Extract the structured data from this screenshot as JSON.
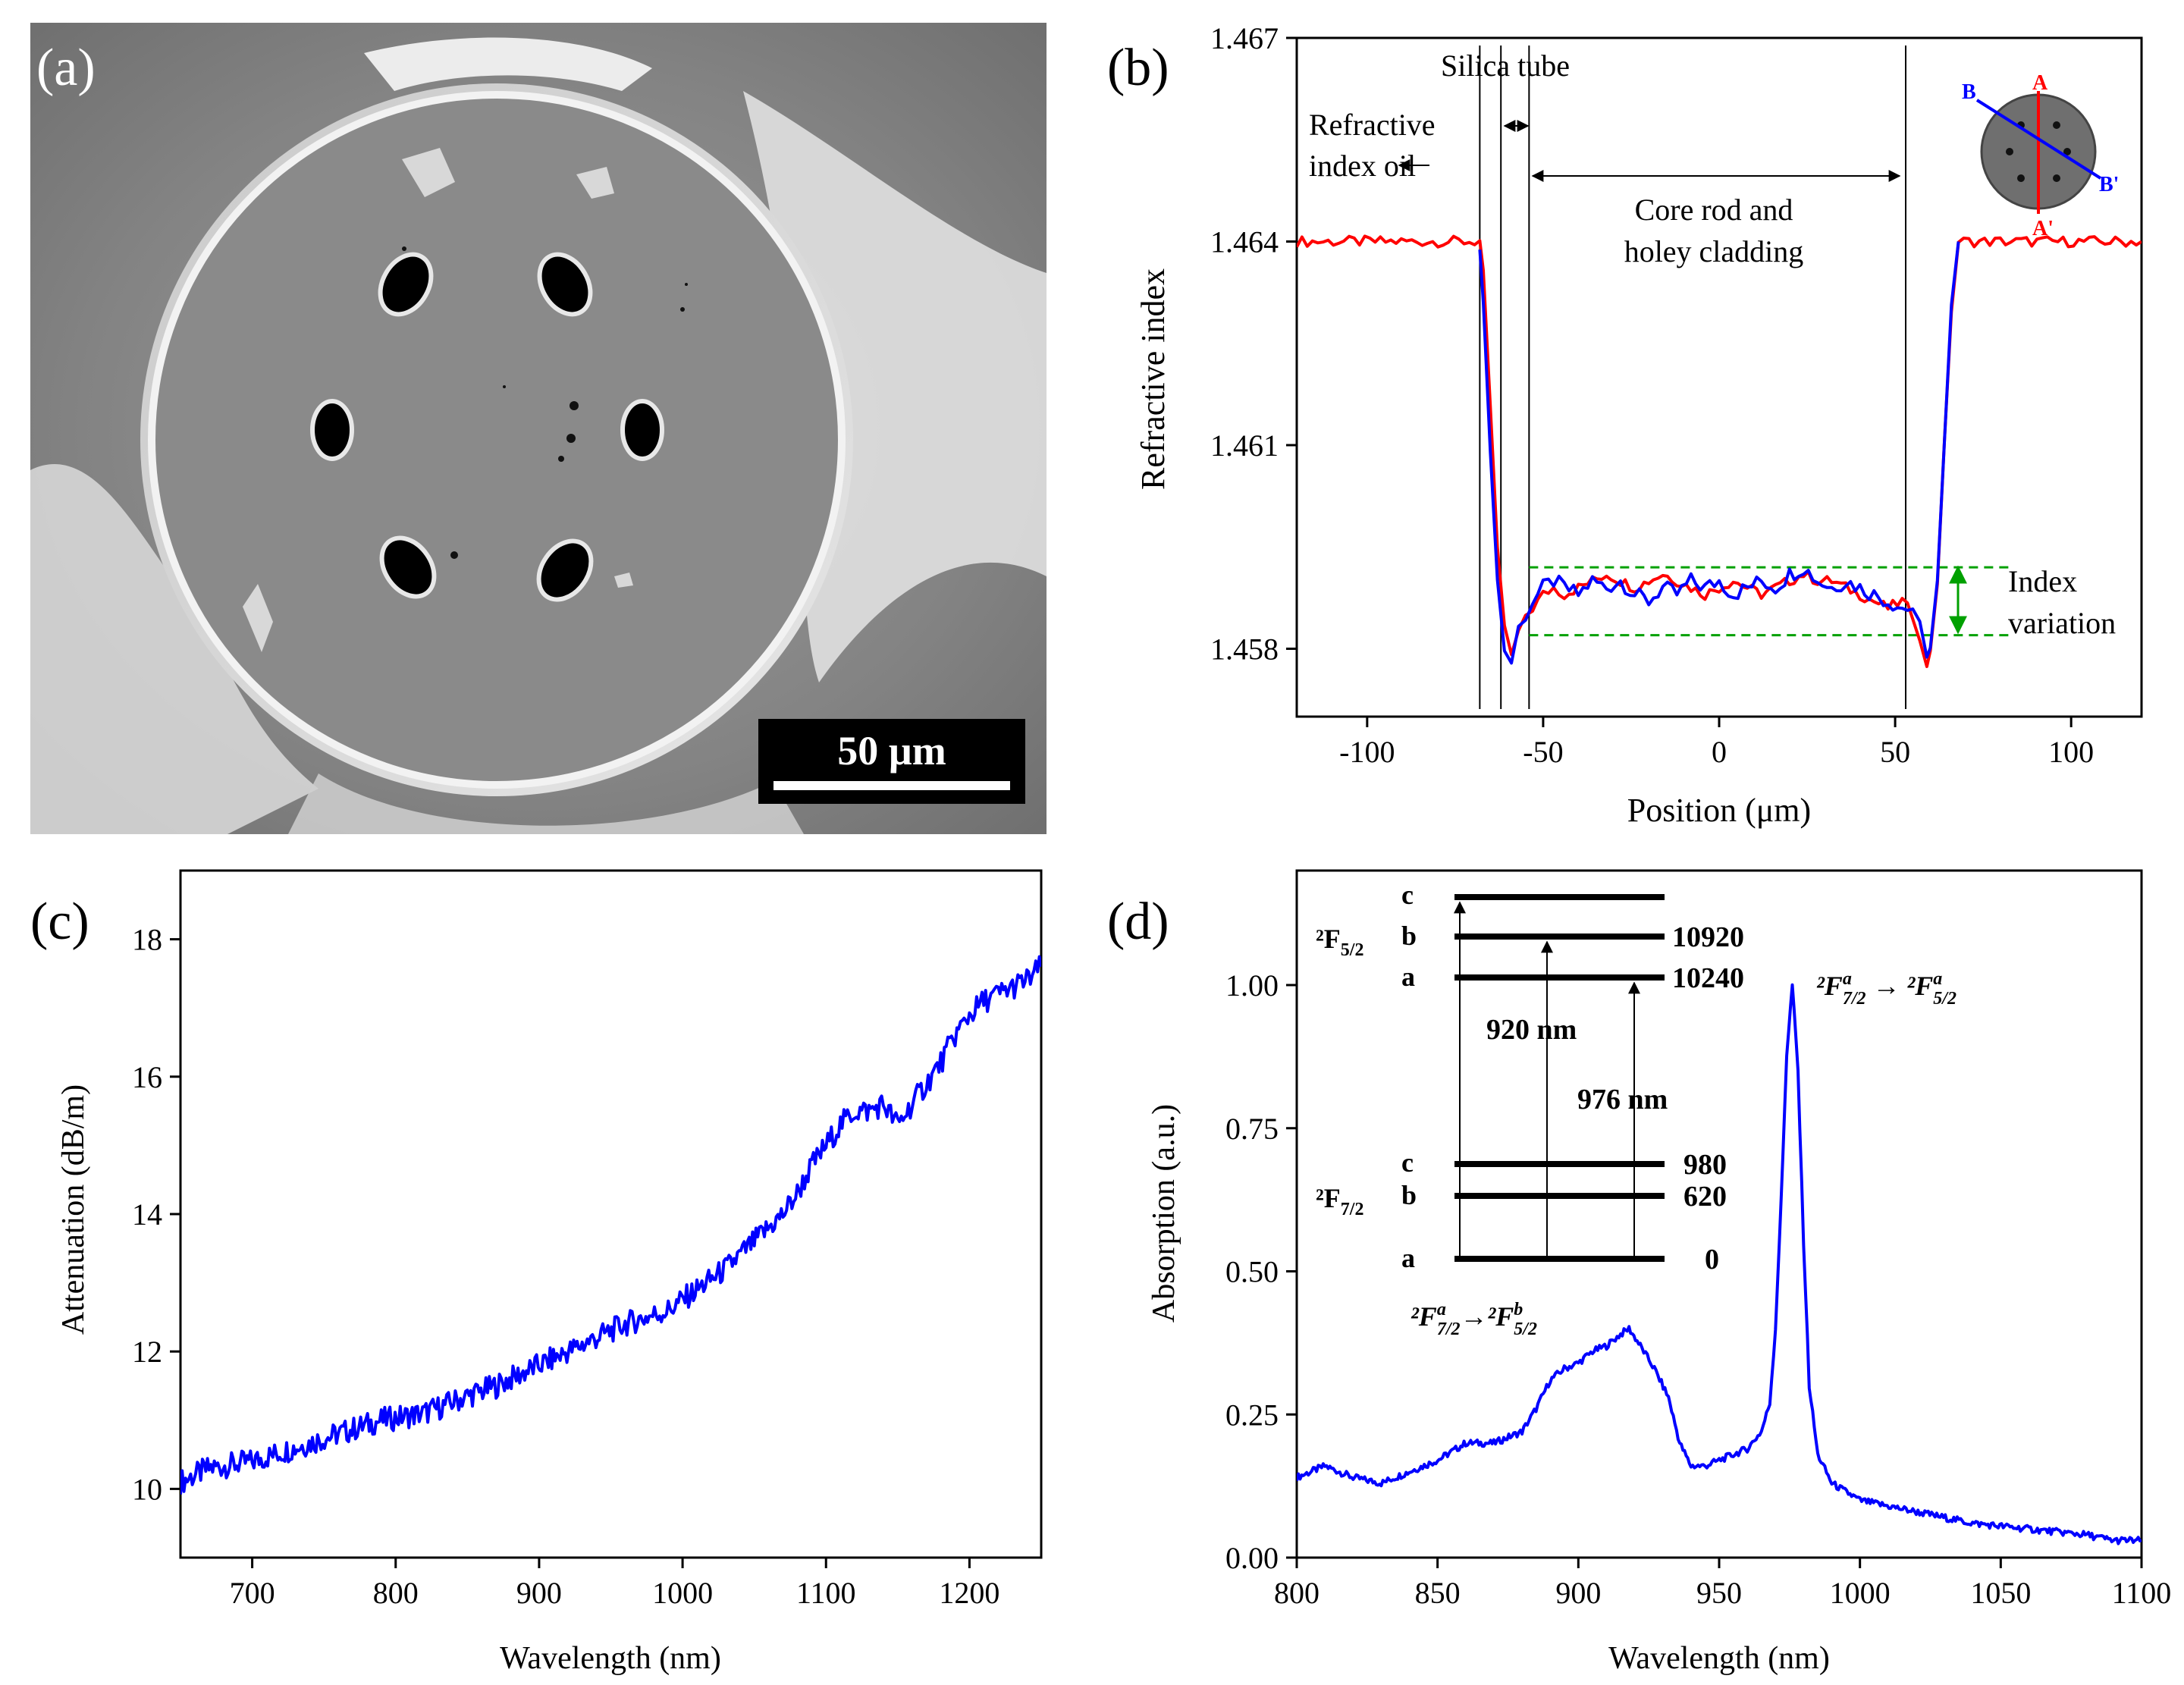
{
  "panels": {
    "a": {
      "label": "(a)",
      "scale_bar": "50 µm"
    },
    "b": {
      "label": "(b)",
      "annotations": {
        "silica_tube": "Silica tube",
        "ri_oil_1": "Refractive",
        "ri_oil_2": "index oil",
        "core_1": "Core rod and",
        "core_2": "holey cladding",
        "index_var_1": "Index",
        "index_var_2": "variation"
      },
      "inset_labels": {
        "A": "A",
        "A_prime": "A'",
        "B": "B",
        "B_prime": "B'"
      }
    },
    "c": {
      "label": "(c)"
    },
    "d": {
      "label": "(d)",
      "energy_levels": {
        "upper_manifold": "²F",
        "upper_sub": "5/2",
        "lower_manifold": "²F",
        "lower_sub": "7/2",
        "upper_levels": [
          {
            "name": "c",
            "energy": ""
          },
          {
            "name": "b",
            "energy": "10920"
          },
          {
            "name": "a",
            "energy": "10240"
          }
        ],
        "lower_levels": [
          {
            "name": "c",
            "energy": "980"
          },
          {
            "name": "b",
            "energy": "620"
          },
          {
            "name": "a",
            "energy": "0"
          }
        ],
        "transition_920": "920 nm",
        "transition_976": "976 nm"
      },
      "peak_label_main": "²F",
      "peak_label_main_sup1": "a",
      "peak_label_main_sub1": "7/2",
      "peak_label_main_sup2": "a",
      "peak_label_main_sub2": "5/2",
      "peak_label_side_sup1": "a",
      "peak_label_side_sub1": "7/2",
      "peak_label_side_sup2": "b",
      "peak_label_side_sub2": "5/2"
    }
  },
  "colors": {
    "red": "#ff0000",
    "blue": "#0000ff",
    "green": "#00a000"
  },
  "chart_data": [
    {
      "id": "b",
      "type": "line",
      "xlabel": "Position (μm)",
      "ylabel": "Refractive index",
      "xlim": [
        -120,
        120
      ],
      "ylim": [
        1.457,
        1.467
      ],
      "xticks": [
        -100,
        -50,
        0,
        50,
        100
      ],
      "yticks": [
        1.458,
        1.461,
        1.464,
        1.467
      ],
      "vlines": [
        -68,
        -62,
        -54,
        53
      ],
      "hlines_dashed": [
        1.4582,
        1.4592
      ],
      "series": [
        {
          "color": "#ff0000",
          "x": [
            -120,
            -68,
            -67,
            -65,
            -63,
            -61,
            -59,
            -57,
            -55,
            -53,
            -50,
            -47,
            -44,
            -40,
            -36,
            -32,
            -28,
            -24,
            -20,
            -16,
            -12,
            -8,
            -4,
            0,
            4,
            8,
            12,
            16,
            20,
            24,
            28,
            32,
            36,
            40,
            44,
            48,
            52,
            55,
            57,
            59,
            60,
            62,
            64,
            66,
            68,
            120
          ],
          "y": [
            1.464,
            1.464,
            1.4635,
            1.4615,
            1.4595,
            1.4583,
            1.4579,
            1.4582,
            1.4585,
            1.4586,
            1.4588,
            1.4589,
            1.4588,
            1.4589,
            1.459,
            1.4591,
            1.459,
            1.4589,
            1.459,
            1.4591,
            1.459,
            1.4589,
            1.4588,
            1.4589,
            1.459,
            1.4589,
            1.4588,
            1.4589,
            1.459,
            1.4591,
            1.459,
            1.459,
            1.4589,
            1.4588,
            1.4587,
            1.4586,
            1.4587,
            1.4585,
            1.4582,
            1.4577,
            1.458,
            1.459,
            1.461,
            1.463,
            1.464,
            1.464
          ]
        },
        {
          "color": "#0000ff",
          "x": [
            -68,
            -67,
            -65,
            -63,
            -61,
            -59,
            -57,
            -55,
            -53,
            -50,
            -47,
            -44,
            -40,
            -36,
            -32,
            -28,
            -24,
            -20,
            -16,
            -12,
            -8,
            -4,
            0,
            4,
            8,
            12,
            16,
            20,
            24,
            28,
            32,
            36,
            40,
            44,
            48,
            52,
            55,
            57,
            59,
            60,
            62,
            64,
            66,
            68
          ],
          "y": [
            1.464,
            1.463,
            1.461,
            1.459,
            1.458,
            1.4578,
            1.4583,
            1.4585,
            1.4587,
            1.4589,
            1.459,
            1.4589,
            1.4588,
            1.459,
            1.4589,
            1.459,
            1.4588,
            1.4587,
            1.4589,
            1.4588,
            1.459,
            1.4589,
            1.459,
            1.4588,
            1.4589,
            1.459,
            1.4589,
            1.4591,
            1.4592,
            1.459,
            1.4589,
            1.459,
            1.4589,
            1.4588,
            1.4587,
            1.4586,
            1.4586,
            1.4583,
            1.4578,
            1.4581,
            1.459,
            1.461,
            1.463,
            1.464
          ]
        }
      ]
    },
    {
      "id": "c",
      "type": "line",
      "xlabel": "Wavelength (nm)",
      "ylabel": "Attenuation (dB/m)",
      "xlim": [
        650,
        1250
      ],
      "ylim": [
        9,
        19
      ],
      "xticks": [
        700,
        800,
        900,
        1000,
        1100,
        1200
      ],
      "yticks": [
        10,
        12,
        14,
        16,
        18
      ],
      "series": [
        {
          "color": "#0000ff",
          "x": [
            650,
            670,
            700,
            730,
            760,
            790,
            820,
            850,
            870,
            890,
            910,
            930,
            960,
            990,
            1010,
            1030,
            1050,
            1070,
            1080,
            1090,
            1100,
            1110,
            1120,
            1130,
            1140,
            1150,
            1160,
            1170,
            1180,
            1190,
            1200,
            1210,
            1220,
            1230,
            1240,
            1250
          ],
          "y": [
            10.1,
            10.3,
            10.4,
            10.6,
            10.8,
            11.0,
            11.1,
            11.35,
            11.5,
            11.7,
            11.9,
            12.1,
            12.4,
            12.6,
            12.9,
            13.2,
            13.6,
            14.0,
            14.3,
            14.7,
            15.0,
            15.3,
            15.5,
            15.5,
            15.6,
            15.3,
            15.6,
            15.9,
            16.2,
            16.6,
            16.9,
            17.1,
            17.2,
            17.3,
            17.4,
            17.6
          ]
        }
      ]
    },
    {
      "id": "d",
      "type": "line",
      "xlabel": "Wavelength (nm)",
      "ylabel": "Absorption (a.u.)",
      "xlim": [
        800,
        1100
      ],
      "ylim": [
        0,
        1.2
      ],
      "xticks": [
        800,
        850,
        900,
        950,
        1000,
        1050,
        1100
      ],
      "yticks": [
        0.0,
        0.25,
        0.5,
        0.75,
        1.0
      ],
      "ytick_labels": [
        "0.00",
        "0.25",
        "0.50",
        "0.75",
        "1.00"
      ],
      "series": [
        {
          "color": "#0000ff",
          "x": [
            800,
            810,
            820,
            830,
            840,
            850,
            860,
            870,
            880,
            885,
            890,
            895,
            900,
            905,
            910,
            915,
            918,
            922,
            927,
            932,
            936,
            940,
            945,
            950,
            955,
            960,
            965,
            968,
            970,
            972,
            974,
            976,
            978,
            980,
            982,
            985,
            990,
            1000,
            1020,
            1040,
            1060,
            1080,
            1090,
            1100
          ],
          "y": [
            0.14,
            0.16,
            0.14,
            0.13,
            0.15,
            0.17,
            0.2,
            0.2,
            0.22,
            0.26,
            0.31,
            0.33,
            0.34,
            0.36,
            0.37,
            0.39,
            0.4,
            0.37,
            0.33,
            0.28,
            0.2,
            0.16,
            0.16,
            0.17,
            0.18,
            0.19,
            0.22,
            0.27,
            0.4,
            0.62,
            0.88,
            1.0,
            0.85,
            0.55,
            0.3,
            0.18,
            0.13,
            0.1,
            0.08,
            0.06,
            0.05,
            0.04,
            0.03,
            0.03
          ]
        }
      ]
    }
  ]
}
